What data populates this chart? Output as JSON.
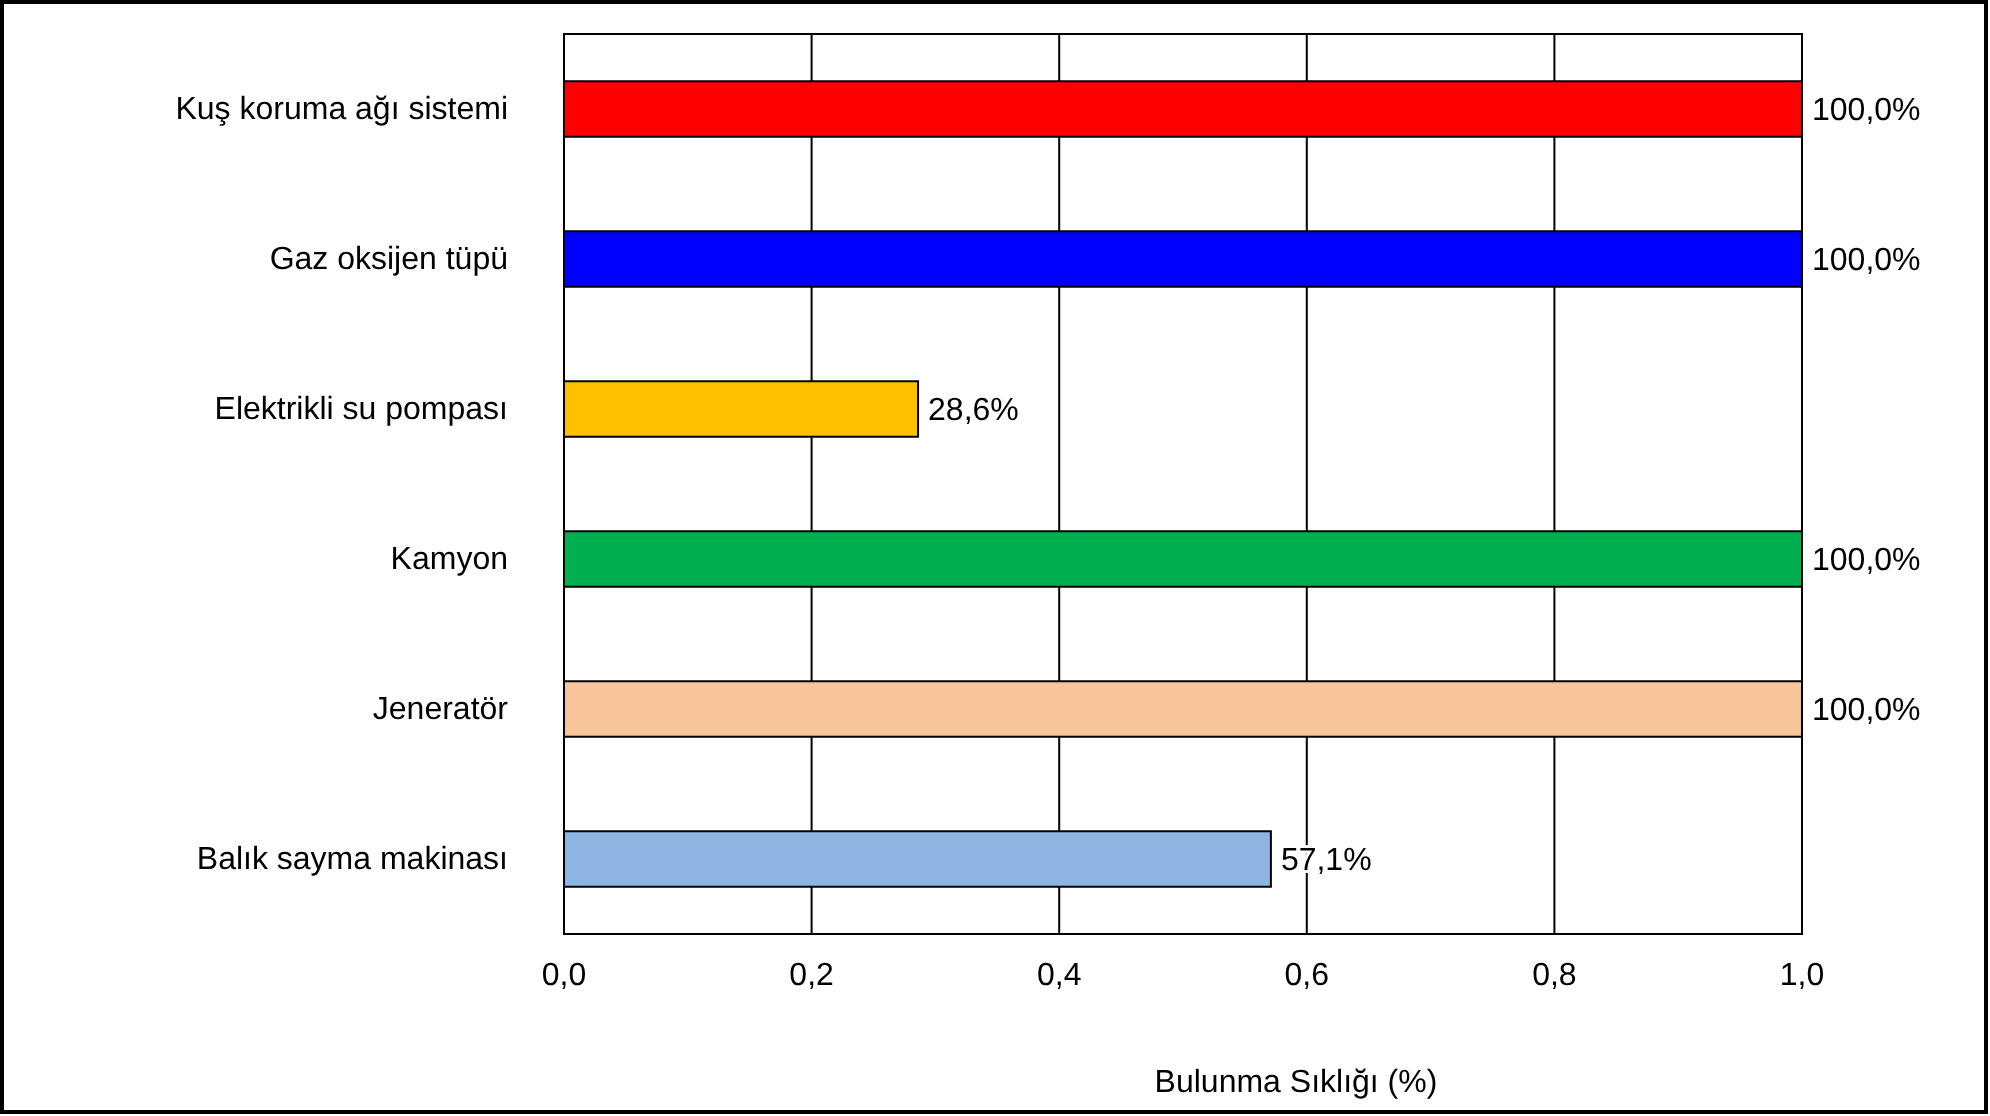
{
  "chart_data": {
    "type": "bar",
    "orientation": "horizontal",
    "categories": [
      "Kuş koruma ağı sistemi",
      "Gaz oksijen tüpü",
      "Elektrikli su pompası",
      "Kamyon",
      "Jeneratör",
      "Balık sayma makinası"
    ],
    "values": [
      1.0,
      1.0,
      0.286,
      1.0,
      1.0,
      0.571
    ],
    "colors": [
      "#ff0000",
      "#0000ff",
      "#ffc000",
      "#00b050",
      "#f8c49a",
      "#8eb4e2"
    ],
    "value_labels": [
      "100,0%",
      "100,0%",
      "28,6%",
      "100,0%",
      "100,0%",
      "57,1%"
    ],
    "xlim": [
      0,
      1
    ],
    "xticks": [
      {
        "value": 0,
        "label": "0,0"
      },
      {
        "value": 0.2,
        "label": "0,2"
      },
      {
        "value": 0.4,
        "label": "0,4"
      },
      {
        "value": 0.6,
        "label": "0,6"
      },
      {
        "value": 0.8,
        "label": "0,8"
      },
      {
        "value": 1,
        "label": "1,0"
      }
    ],
    "xlabel": "Bulunma Sıklığı (%)",
    "grid": "x"
  }
}
